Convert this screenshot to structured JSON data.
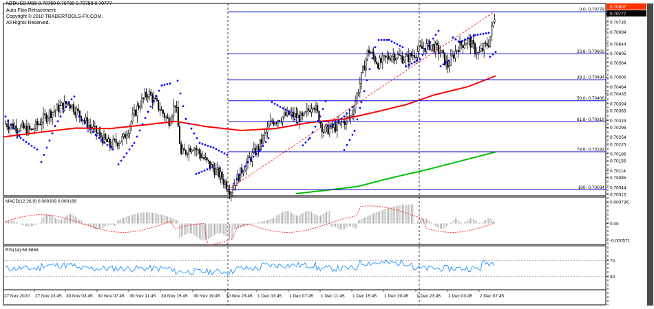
{
  "header": {
    "symbol_line": "NZDUSD,M15  0.70760 0.70780 0.70759 0.70777",
    "indicator_name": "Auto Fibo Retracement",
    "copyright": "Copyright © 2010 TRADERTOOLS-FX.COM.",
    "rights": "All Rights Reserved."
  },
  "colors": {
    "background": "#ffffff",
    "candles": "#000000",
    "parabolic_sar": "#0000ff",
    "ma_fast": "#ff0000",
    "ma_slow": "#00c000",
    "fibo_lines": "#0000cd",
    "fibo_trend": "#ff0000",
    "macd_histogram": "#a0a0a0",
    "macd_signal": "#ff0000",
    "rsi_line": "#1e90ff",
    "price_marker_high": "#ff3300",
    "price_marker_current": "#000000"
  },
  "chart_data": [
    {
      "type": "candlestick",
      "symbol": "NZDUSD",
      "timeframe": "M15",
      "ohlc": {
        "open": 0.7076,
        "high": 0.7078,
        "low": 0.70759,
        "close": 0.70777
      },
      "y_axis_ticks": [
        "0.70807",
        "0.70777",
        "0.70735",
        "0.70694",
        "0.70644",
        "0.70605",
        "0.70564",
        "0.70505",
        "0.70464",
        "0.70435",
        "0.70394",
        "0.70365",
        "0.70324",
        "0.70295",
        "0.70254",
        "0.70225",
        "0.70185",
        "0.70155",
        "0.70114",
        "0.70085",
        "0.70044",
        "0.70015"
      ],
      "price_high_label": "0.70807",
      "price_current_label": "0.70777",
      "fibo_levels": [
        {
          "label": "0.0",
          "price": "0.70778"
        },
        {
          "label": "23.6",
          "price": "0.70602"
        },
        {
          "label": "38.2",
          "price": "0.70494"
        },
        {
          "label": "50.0",
          "price": "0.70406"
        },
        {
          "label": "61.8",
          "price": "0.70318"
        },
        {
          "label": "78.6",
          "price": "0.70193"
        },
        {
          "label": "100",
          "price": "0.70034"
        }
      ],
      "x_axis_ticks": [
        "27 Nov 2020",
        "27 Nov 23:45",
        "30 Nov 03:45",
        "30 Nov 07:45",
        "30 Nov 11:45",
        "30 Nov 15:45",
        "30 Nov 19:45",
        "30 Nov 23:45",
        "1 Dec 03:45",
        "1 Dec 07:45",
        "1 Dec 11:45",
        "1 Dec 15:45",
        "1 Dec 19:45",
        "1 Dec 23:45",
        "2 Dec 03:45",
        "2 Dec 07:45"
      ],
      "grid": false
    },
    {
      "type": "bar",
      "indicator": "MACD",
      "title": "MACD(12,26,9) 0.000309 0.000168",
      "y_axis_ticks": [
        "0.000736",
        "0.00",
        "-0.000571"
      ]
    },
    {
      "type": "line",
      "indicator": "RSI",
      "title": "RSI(14) 66.9868",
      "levels": [
        70,
        30
      ],
      "y_axis_ticks": [
        "70",
        "30"
      ]
    }
  ]
}
